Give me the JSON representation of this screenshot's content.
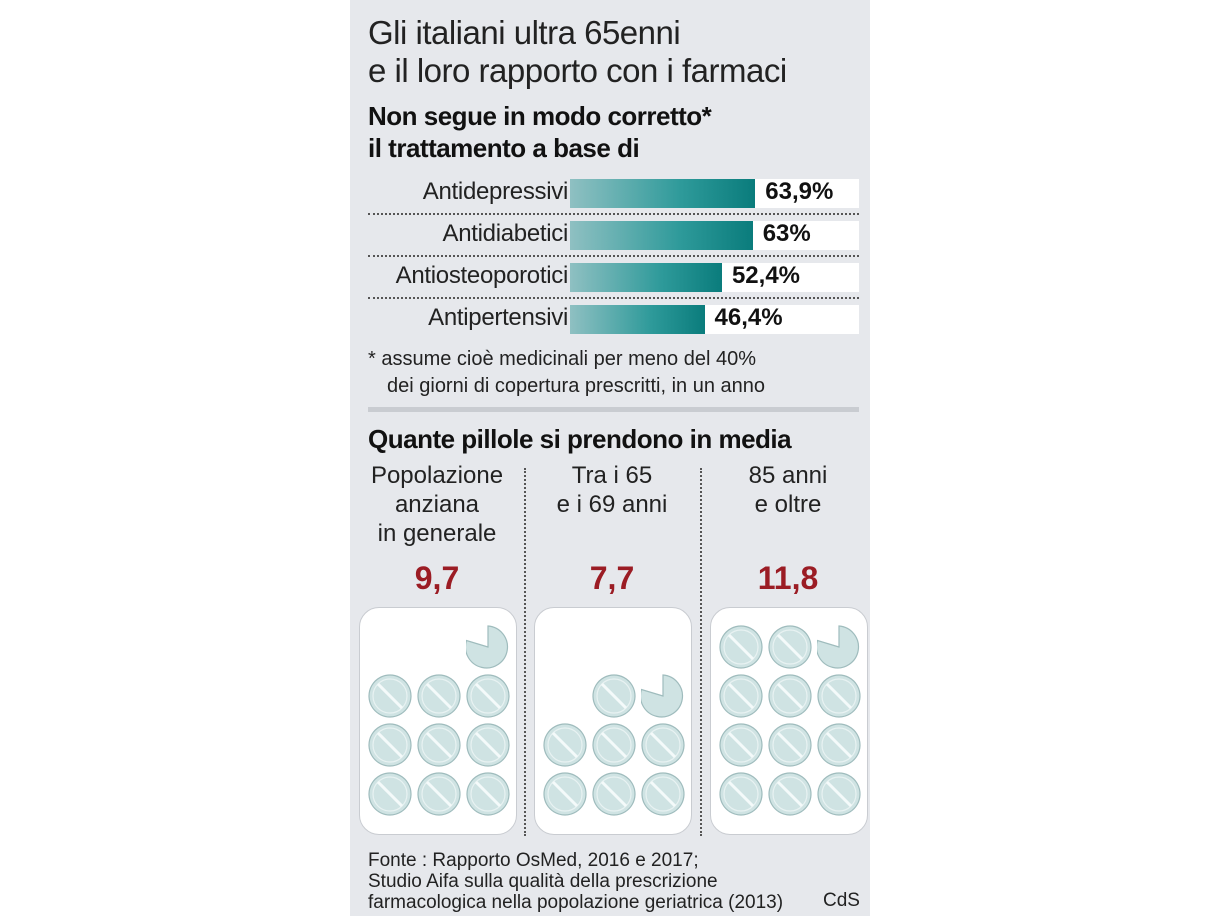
{
  "title_line1": "Gli italiani ultra 65enni",
  "title_line2": "e il loro rapporto con i farmaci",
  "subtitle_line1": "Non segue in modo corretto*",
  "subtitle_line2": "il trattamento a base di",
  "chart_data": [
    {
      "type": "bar",
      "orientation": "horizontal",
      "categories": [
        "Antidepressivi",
        "Antidiabetici",
        "Antiosteoporotici",
        "Antipertensivi"
      ],
      "values": [
        63.9,
        63,
        52.4,
        46.4
      ],
      "value_labels": [
        "63,9%",
        "63%",
        "52,4%",
        "46,4%"
      ],
      "unit": "%"
    },
    {
      "type": "table",
      "title": "Quante pillole si prendono in media",
      "categories": [
        [
          "Popolazione",
          "anziana",
          "in generale"
        ],
        [
          "Tra i 65",
          "e i 69 anni"
        ],
        [
          "85 anni",
          "e oltre"
        ]
      ],
      "values": [
        9.7,
        7.7,
        11.8
      ],
      "value_labels": [
        "9,7",
        "7,7",
        "11,8"
      ]
    }
  ],
  "footnote_line1": "* assume cioè medicinali per meno del 40%",
  "footnote_line2": "dei giorni di copertura prescritti, in un anno",
  "source_line1": "Fonte : Rapporto OsMed,  2016 e 2017;",
  "source_line2": "Studio Aifa  sulla qualità della prescrizione",
  "source_line3": "farmacologica nella popolazione geriatrica (2013)",
  "credit": "CdS",
  "colors": {
    "bar_start": "#8fc0c2",
    "bar_end": "#0a7c7c",
    "value_red": "#9b1c24",
    "pill": "#cfe3e3"
  }
}
